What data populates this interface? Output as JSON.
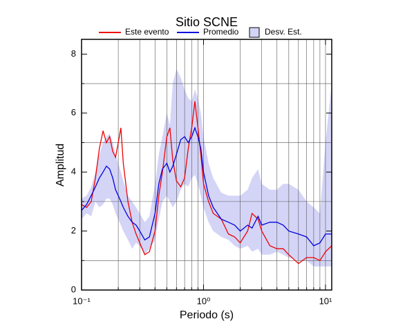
{
  "chart_data": {
    "type": "line",
    "title": "Sitio SCNE",
    "x_label": "Periodo (s)",
    "y_label": "Amplitud",
    "xscale": "log",
    "xlim": [
      0.1,
      11.25
    ],
    "ylim": [
      0,
      8.5
    ],
    "xticks": [
      {
        "value": 0.1,
        "label": "10⁻¹"
      },
      {
        "value": 1,
        "label": "10⁰"
      },
      {
        "value": 10,
        "label": "10¹"
      }
    ],
    "xminorticks": [
      0.2,
      0.3,
      0.4,
      0.5,
      0.6,
      0.7,
      0.8,
      0.9,
      2,
      3,
      4,
      5,
      6,
      7,
      8,
      9
    ],
    "yticks": [
      0,
      2,
      4,
      6,
      8
    ],
    "yminorticks": [
      1,
      3,
      5,
      7
    ],
    "grid": true,
    "x": [
      0.1,
      0.11,
      0.12,
      0.13,
      0.14,
      0.15,
      0.16,
      0.17,
      0.18,
      0.19,
      0.2,
      0.21,
      0.22,
      0.24,
      0.26,
      0.28,
      0.3,
      0.33,
      0.36,
      0.4,
      0.43,
      0.46,
      0.5,
      0.53,
      0.56,
      0.6,
      0.65,
      0.7,
      0.75,
      0.8,
      0.85,
      0.9,
      0.95,
      1.0,
      1.1,
      1.2,
      1.4,
      1.6,
      1.8,
      2.0,
      2.3,
      2.5,
      2.8,
      3.0,
      3.5,
      4.0,
      4.5,
      5.0,
      6.0,
      7.0,
      8.0,
      9.0,
      10,
      11.25
    ],
    "band": {
      "name": "Desv. Est.",
      "color": "#d4d4f7",
      "low": [
        2.4,
        2.6,
        2.5,
        3.0,
        2.8,
        2.9,
        3.1,
        3.1,
        2.9,
        2.6,
        2.4,
        2.2,
        2.0,
        1.7,
        1.4,
        1.6,
        1.5,
        1.2,
        1.4,
        1.7,
        2.4,
        3.0,
        3.2,
        3.0,
        2.8,
        3.0,
        3.4,
        3.6,
        3.5,
        3.8,
        3.9,
        3.6,
        3.2,
        2.8,
        2.3,
        2.0,
        1.8,
        1.7,
        1.5,
        1.4,
        1.5,
        1.3,
        1.4,
        1.2,
        1.2,
        1.3,
        1.2,
        1.1,
        1.0,
        1.0,
        0.8,
        0.8,
        0.8,
        0.8
      ],
      "high": [
        3.1,
        3.2,
        3.5,
        4.0,
        4.6,
        5.0,
        5.2,
        5.3,
        5.0,
        4.6,
        4.3,
        4.0,
        3.7,
        3.2,
        3.0,
        2.8,
        2.6,
        2.3,
        2.5,
        3.6,
        4.6,
        5.2,
        6.0,
        5.6,
        7.0,
        7.5,
        7.2,
        6.8,
        6.5,
        6.4,
        6.8,
        6.5,
        6.0,
        5.2,
        4.3,
        3.8,
        3.3,
        3.2,
        3.2,
        3.2,
        3.4,
        3.8,
        4.1,
        3.6,
        3.4,
        3.4,
        3.6,
        3.6,
        3.4,
        3.0,
        2.8,
        2.6,
        5.0,
        7.0
      ]
    },
    "series": [
      {
        "name": "Este evento",
        "color": "#ee0000",
        "values": [
          2.9,
          2.8,
          3.0,
          3.8,
          4.8,
          5.4,
          5.0,
          5.2,
          4.7,
          4.5,
          5.0,
          5.5,
          4.3,
          3.0,
          2.3,
          1.9,
          1.6,
          1.2,
          1.3,
          2.0,
          3.2,
          4.0,
          5.2,
          5.5,
          4.4,
          3.7,
          3.5,
          3.8,
          4.8,
          5.5,
          6.4,
          5.5,
          4.6,
          3.6,
          3.0,
          2.6,
          2.4,
          1.9,
          1.8,
          1.6,
          2.0,
          2.6,
          2.4,
          2.0,
          1.5,
          1.4,
          1.4,
          1.2,
          0.9,
          1.1,
          1.1,
          1.0,
          1.3,
          1.5
        ]
      },
      {
        "name": "Promedio",
        "color": "#0000dd",
        "values": [
          2.7,
          2.9,
          3.2,
          3.5,
          3.8,
          4.0,
          4.2,
          4.1,
          3.8,
          3.4,
          3.2,
          3.0,
          2.8,
          2.5,
          2.3,
          2.2,
          2.0,
          1.7,
          1.8,
          2.6,
          3.6,
          4.1,
          4.3,
          4.0,
          4.2,
          4.6,
          5.1,
          5.2,
          5.0,
          5.2,
          5.5,
          5.2,
          4.8,
          4.0,
          3.2,
          2.8,
          2.4,
          2.3,
          2.2,
          2.0,
          2.2,
          2.1,
          2.5,
          2.2,
          2.3,
          2.3,
          2.2,
          2.0,
          1.9,
          1.8,
          1.5,
          1.6,
          1.9,
          1.9
        ]
      }
    ]
  }
}
